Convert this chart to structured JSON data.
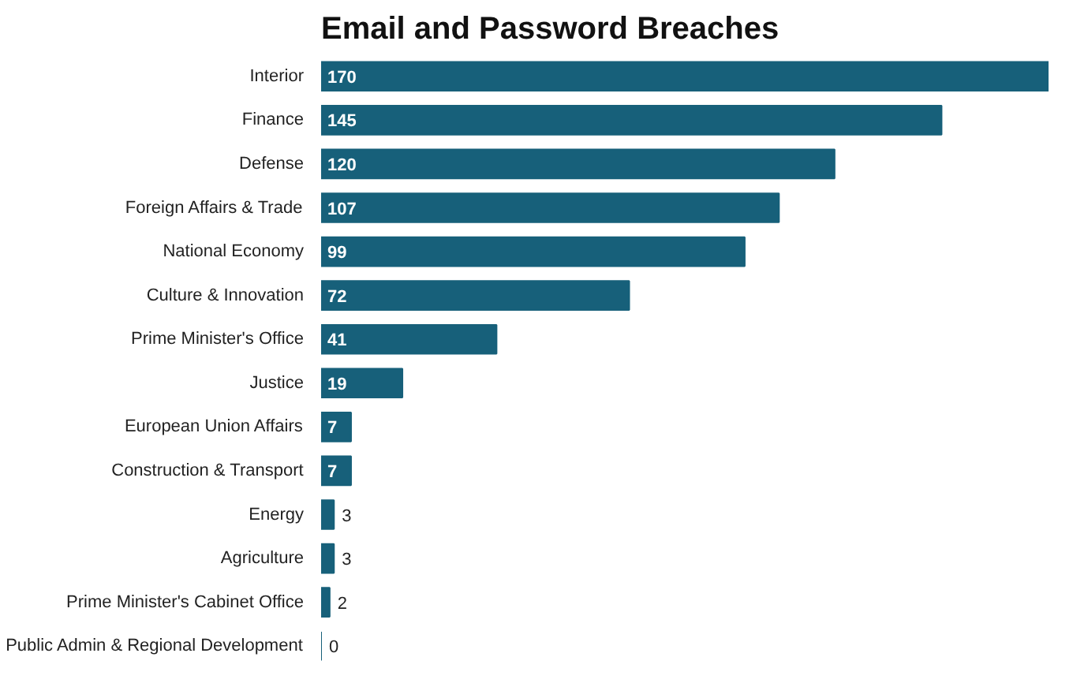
{
  "chart_data": {
    "type": "bar",
    "orientation": "horizontal",
    "title": "Email and Password Breaches",
    "categories": [
      "Interior",
      "Finance",
      "Defense",
      "Foreign Affairs & Trade",
      "National Economy",
      "Culture & Innovation",
      "Prime Minister's Office",
      "Justice",
      "European Union Affairs",
      "Construction & Transport",
      "Energy",
      "Agriculture",
      "Prime Minister's Cabinet Office",
      "Public Admin & Regional Development"
    ],
    "values": [
      170,
      145,
      120,
      107,
      99,
      72,
      41,
      19,
      7,
      7,
      3,
      3,
      2,
      0
    ],
    "color": "#17607a",
    "data_labels": true,
    "xlim": [
      0,
      170
    ],
    "tick_labels": "y"
  }
}
